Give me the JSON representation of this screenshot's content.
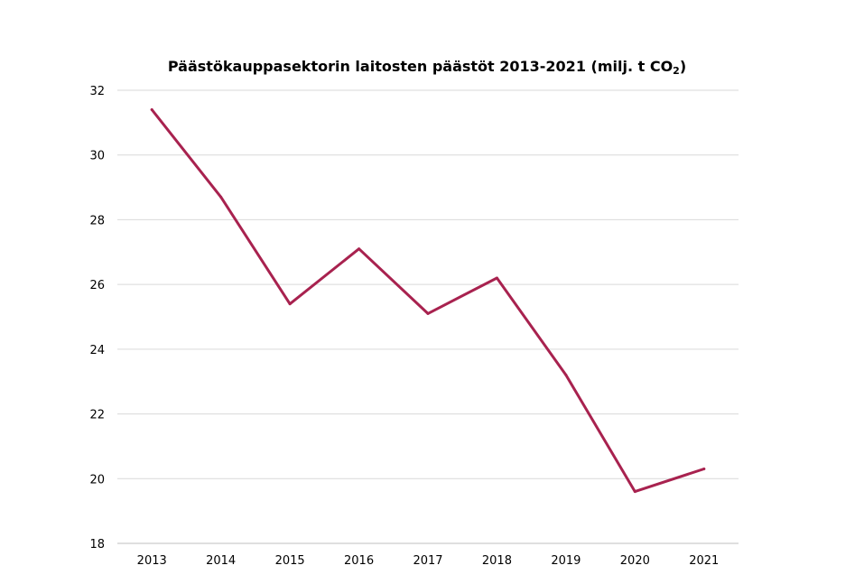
{
  "chart_data": {
    "type": "line",
    "title": {
      "main": "Päästökauppasektorin laitosten päästöt 2013-2021 (milj. t CO",
      "subscript": "2",
      "close": ")"
    },
    "categories": [
      "2013",
      "2014",
      "2015",
      "2016",
      "2017",
      "2018",
      "2019",
      "2020",
      "2021"
    ],
    "series": [
      {
        "values": [
          31.4,
          28.7,
          25.4,
          27.1,
          25.1,
          26.2,
          23.2,
          19.6,
          20.3
        ],
        "color": "#a8224f"
      }
    ],
    "ylim": [
      18,
      32
    ],
    "yticks": [
      "18",
      "20",
      "22",
      "24",
      "26",
      "28",
      "30",
      "32"
    ],
    "grid": true,
    "legend": "none"
  }
}
